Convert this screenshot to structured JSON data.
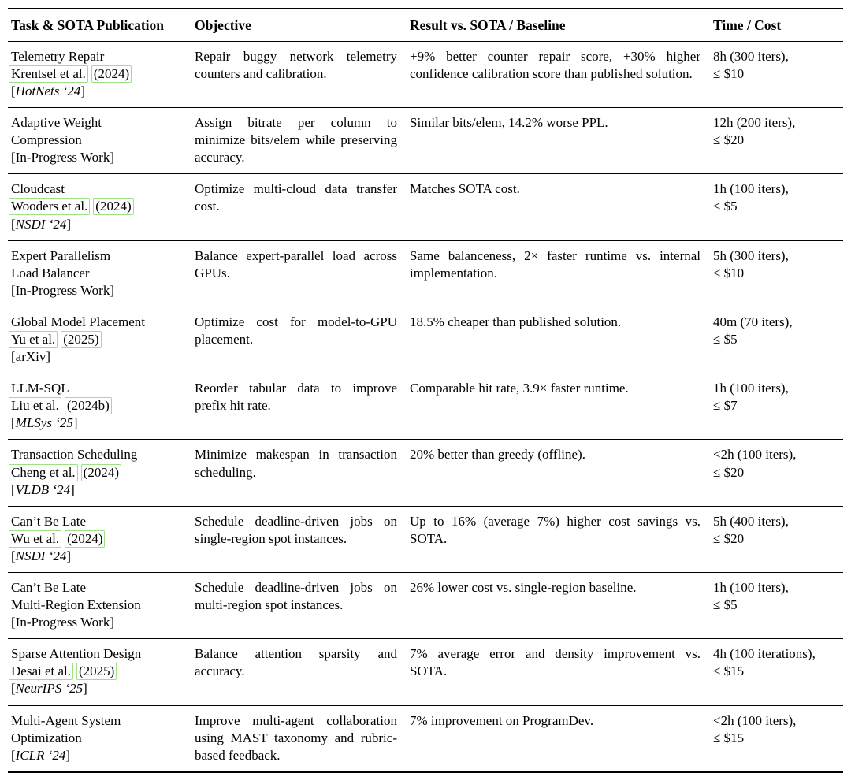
{
  "colors": {
    "background": "#ffffff",
    "text": "#000000",
    "rule": "#000000",
    "citation_box_border": "#9ce183"
  },
  "table": {
    "columns": [
      {
        "label": "Task & SOTA Publication"
      },
      {
        "label": "Objective"
      },
      {
        "label": "Result vs. SOTA / Baseline"
      },
      {
        "label": "Time / Cost"
      }
    ],
    "rows": [
      {
        "task": {
          "title_lines": [
            "Telemetry Repair"
          ],
          "citation": {
            "authors": "Krentsel et al.",
            "year": "(2024)"
          },
          "venue": {
            "prefix": "[",
            "text": "HotNets ‘24",
            "suffix": "]",
            "italic": true
          }
        },
        "objective": "Repair buggy network telemetry counters and calibration.",
        "result": "+9% better counter repair score, +30% higher confidence calibration score than published solution.",
        "time_cost": {
          "time": "8h (300 iters),",
          "cost": "≤ $10"
        }
      },
      {
        "task": {
          "title_lines": [
            "Adaptive Weight",
            "Compression"
          ],
          "citation": null,
          "venue": {
            "prefix": "[",
            "text": "In-Progress Work",
            "suffix": "]",
            "italic": false
          }
        },
        "objective": "Assign bitrate per column to minimize bits/elem while preserving accuracy.",
        "result": "Similar bits/elem, 14.2% worse PPL.",
        "time_cost": {
          "time": "12h (200 iters),",
          "cost": "≤ $20"
        }
      },
      {
        "task": {
          "title_lines": [
            "Cloudcast"
          ],
          "citation": {
            "authors": "Wooders et al.",
            "year": "(2024)"
          },
          "venue": {
            "prefix": "[",
            "text": "NSDI ‘24",
            "suffix": "]",
            "italic": true
          }
        },
        "objective": "Optimize multi-cloud data transfer cost.",
        "result": "Matches SOTA cost.",
        "time_cost": {
          "time": "1h (100 iters),",
          "cost": "≤ $5"
        }
      },
      {
        "task": {
          "title_lines": [
            "Expert Parallelism",
            "Load Balancer"
          ],
          "citation": null,
          "venue": {
            "prefix": "[",
            "text": "In-Progress Work",
            "suffix": "]",
            "italic": false
          }
        },
        "objective": "Balance expert-parallel load across GPUs.",
        "result": "Same balanceness, 2× faster runtime vs. internal implementation.",
        "time_cost": {
          "time": "5h (300 iters),",
          "cost": "≤ $10"
        }
      },
      {
        "task": {
          "title_lines": [
            "Global Model Placement"
          ],
          "citation": {
            "authors": "Yu et al.",
            "year": "(2025)"
          },
          "venue": {
            "prefix": "[",
            "text": "arXiv",
            "suffix": "]",
            "italic": false
          }
        },
        "objective": "Optimize cost for model-to-GPU placement.",
        "result": "18.5% cheaper than published solution.",
        "time_cost": {
          "time": "40m (70 iters),",
          "cost": "≤ $5"
        }
      },
      {
        "task": {
          "title_lines": [
            "LLM-SQL"
          ],
          "citation": {
            "authors": "Liu et al.",
            "year": "(2024b)"
          },
          "venue": {
            "prefix": "[",
            "text": "MLSys ‘25",
            "suffix": "]",
            "italic": true
          }
        },
        "objective": "Reorder tabular data to improve prefix hit rate.",
        "result": "Comparable hit rate, 3.9× faster runtime.",
        "time_cost": {
          "time": "1h (100 iters),",
          "cost": "≤ $7"
        }
      },
      {
        "task": {
          "title_lines": [
            "Transaction Scheduling"
          ],
          "citation": {
            "authors": "Cheng et al.",
            "year": "(2024)"
          },
          "venue": {
            "prefix": "[",
            "text": "VLDB ‘24",
            "suffix": "]",
            "italic": true
          }
        },
        "objective": "Minimize makespan in transaction scheduling.",
        "result": "20% better than greedy (offline).",
        "time_cost": {
          "time": "<2h (100 iters),",
          "cost": "≤ $20"
        }
      },
      {
        "task": {
          "title_lines": [
            "Can’t Be Late"
          ],
          "citation": {
            "authors": "Wu et al.",
            "year": "(2024)"
          },
          "venue": {
            "prefix": "[",
            "text": "NSDI ‘24",
            "suffix": "]",
            "italic": true
          }
        },
        "objective": "Schedule deadline-driven jobs on single-region spot instances.",
        "result": "Up to 16% (average 7%) higher cost savings vs. SOTA.",
        "time_cost": {
          "time": "5h (400 iters),",
          "cost": "≤ $20"
        }
      },
      {
        "task": {
          "title_lines": [
            "Can’t Be Late",
            "Multi-Region Extension"
          ],
          "citation": null,
          "venue": {
            "prefix": "[",
            "text": "In-Progress Work",
            "suffix": "]",
            "italic": false
          }
        },
        "objective": "Schedule deadline-driven jobs on multi-region spot instances.",
        "result": "26% lower cost vs. single-region baseline.",
        "time_cost": {
          "time": "1h (100 iters),",
          "cost": "≤ $5"
        }
      },
      {
        "task": {
          "title_lines": [
            "Sparse Attention Design"
          ],
          "citation": {
            "authors": "Desai et al.",
            "year": "(2025)"
          },
          "venue": {
            "prefix": "[",
            "text": "NeurIPS ‘25",
            "suffix": "]",
            "italic": true
          }
        },
        "objective": "Balance attention sparsity and accuracy.",
        "result": "7% average error and density improvement vs. SOTA.",
        "time_cost": {
          "time": "4h (100 iterations),",
          "cost": "≤ $15"
        }
      },
      {
        "task": {
          "title_lines": [
            "Multi-Agent System",
            "Optimization"
          ],
          "citation": null,
          "venue": {
            "prefix": "[",
            "text": "ICLR ‘24",
            "suffix": "]",
            "italic": true
          }
        },
        "objective": "Improve multi-agent collaboration using MAST taxonomy and rubric-based feedback.",
        "result": "7% improvement on ProgramDev.",
        "time_cost": {
          "time": "<2h (100 iters),",
          "cost": "≤ $15"
        }
      }
    ]
  }
}
